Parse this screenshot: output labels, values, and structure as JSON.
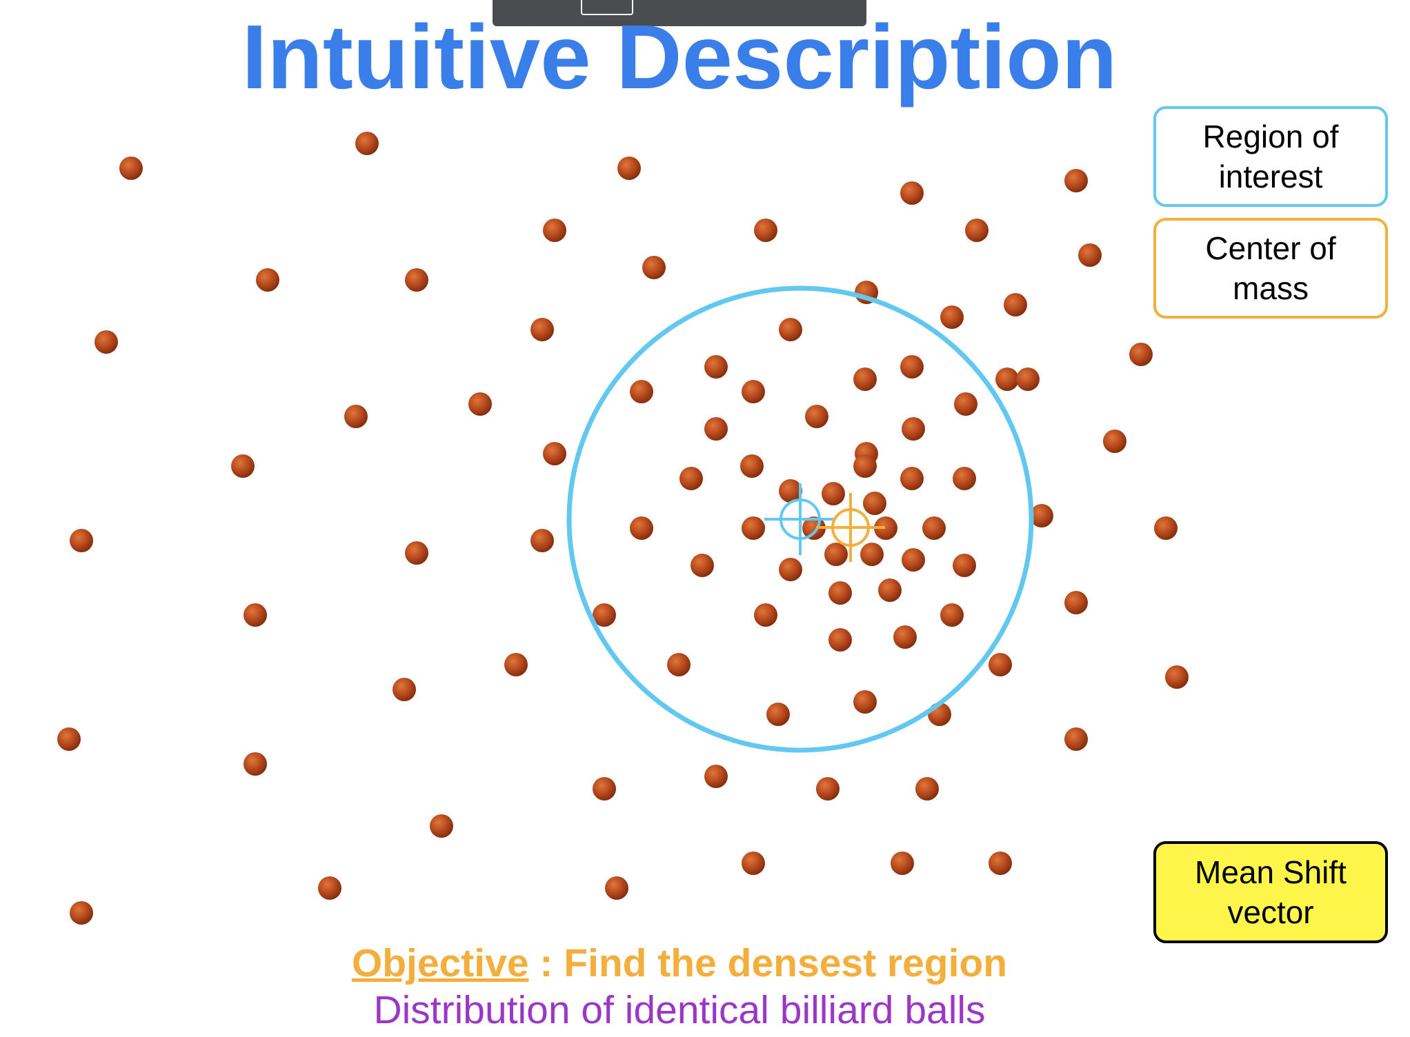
{
  "title": "Intuitive Description",
  "legend": {
    "region_of_interest": "Region of interest",
    "center_of_mass": "Center of mass",
    "mean_shift_vector": "Mean Shift vector"
  },
  "objective": {
    "label": "Objective",
    "separator": " : ",
    "text": "Find the densest region"
  },
  "subtitle": "Distribution of identical billiard balls",
  "colors": {
    "title": "#3a7eea",
    "ball": "#b5481c",
    "region_of_interest": "#62c8f0",
    "center_of_mass": "#f3ae3b",
    "mean_shift_vector_fill": "#fdf54a",
    "subtitle": "#9a37c7"
  }
}
